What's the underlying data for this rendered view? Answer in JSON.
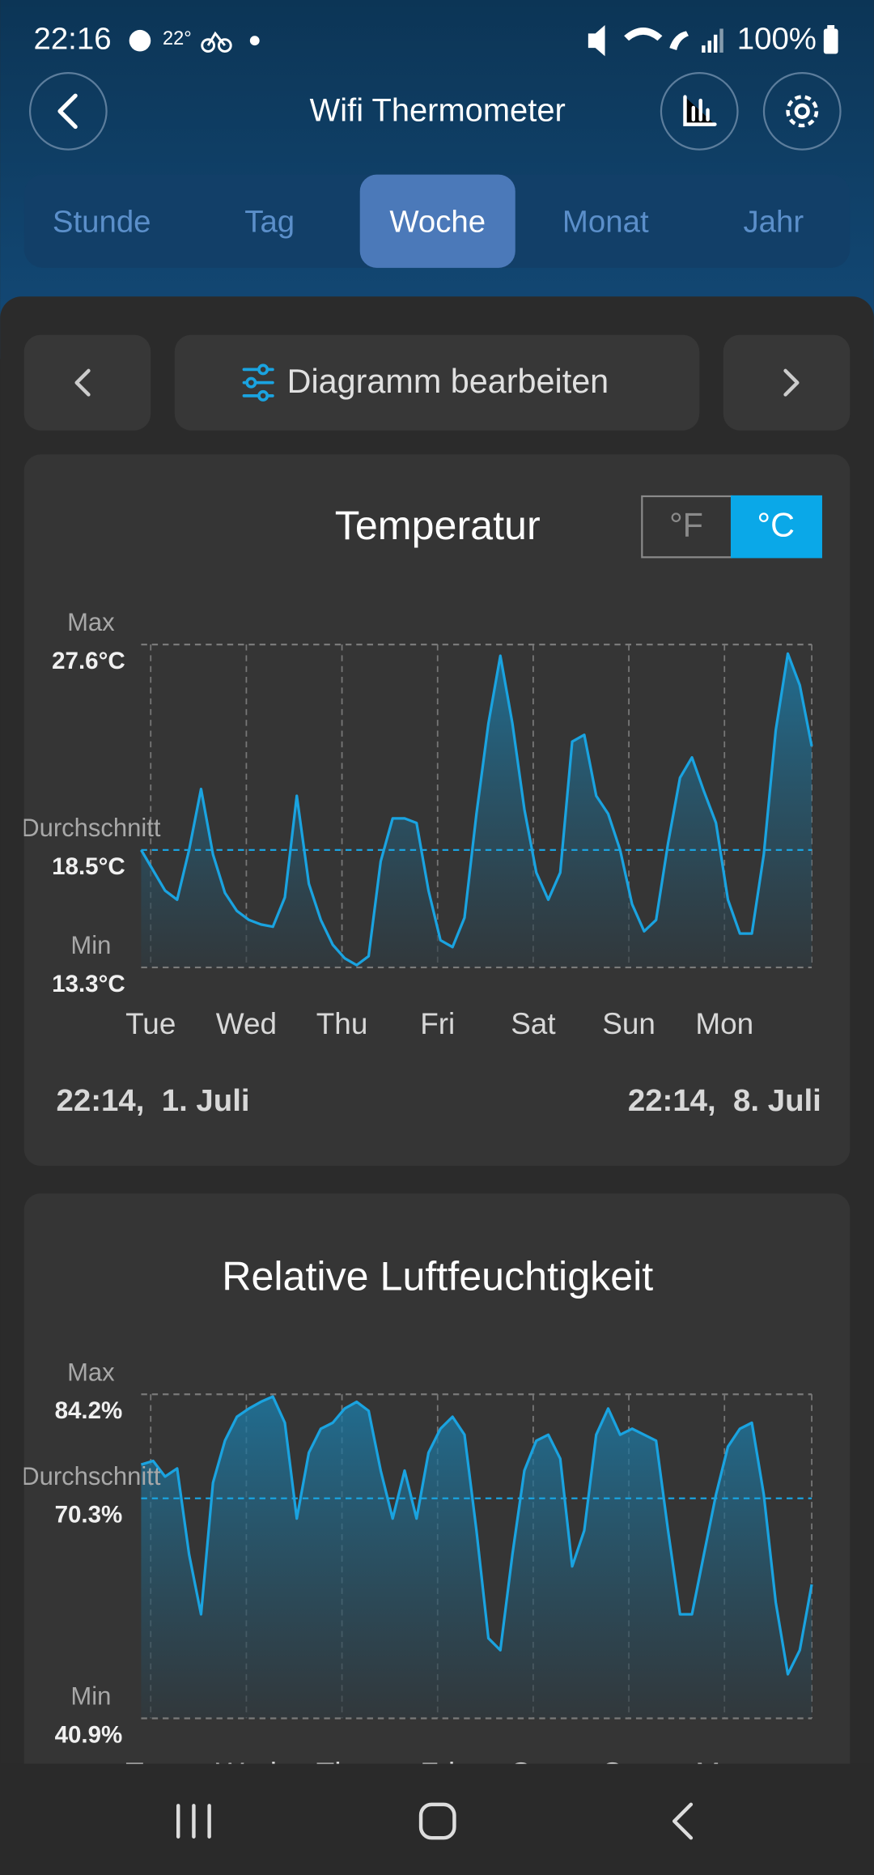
{
  "status_bar": {
    "time": "22:16",
    "temperature": "22°",
    "battery": "100%"
  },
  "header": {
    "title": "Wifi Thermometer"
  },
  "tabs": {
    "items": [
      "Stunde",
      "Tag",
      "Woche",
      "Monat",
      "Jahr"
    ],
    "active": 2
  },
  "toolbar": {
    "edit_label": "Diagramm bearbeiten"
  },
  "charts": [
    {
      "type": "area",
      "title": "Temperatur",
      "unit_toggle": {
        "items": [
          "°F",
          "°C"
        ],
        "active": 1
      },
      "categories": [
        "Tue",
        "Wed",
        "Thu",
        "Fri",
        "Sat",
        "Sun",
        "Mon"
      ],
      "ylim": [
        13.3,
        27.6
      ],
      "reference_lines": [
        {
          "name": "Max",
          "value": 27.6,
          "label": "27.6°C",
          "color": "#7a7a7a"
        },
        {
          "name": "Durchschnitt",
          "value": 18.5,
          "label": "18.5°C",
          "color": "#1aa3e0"
        },
        {
          "name": "Min",
          "value": 13.3,
          "label": "13.3°C",
          "color": "#7a7a7a"
        }
      ],
      "series": [
        {
          "color": "#1aa3e0",
          "values": [
            18.5,
            17.6,
            16.7,
            16.3,
            18.5,
            21.2,
            18.3,
            16.6,
            15.8,
            15.4,
            15.2,
            15.1,
            16.4,
            20.9,
            17.0,
            15.4,
            14.3,
            13.7,
            13.4,
            13.8,
            18.0,
            19.9,
            19.9,
            19.7,
            16.7,
            14.5,
            14.2,
            15.5,
            20.1,
            24.1,
            27.1,
            24.1,
            20.3,
            17.5,
            16.3,
            17.5,
            23.3,
            23.6,
            20.9,
            20.1,
            18.5,
            16.1,
            14.9,
            15.4,
            18.8,
            21.7,
            22.6,
            21.1,
            19.7,
            16.3,
            14.8,
            14.8,
            18.3,
            23.8,
            27.2,
            25.8,
            23.1
          ]
        }
      ],
      "range_start": "22:14,  1. Juli",
      "range_end": "22:14,  8. Juli"
    },
    {
      "type": "area",
      "title": "Relative Luftfeuchtigkeit",
      "categories": [
        "Tue",
        "Wed",
        "Thu",
        "Fri",
        "Sat",
        "Sun",
        "Mon"
      ],
      "ylim": [
        40.9,
        84.2
      ],
      "reference_lines": [
        {
          "name": "Max",
          "value": 84.2,
          "label": "84.2%",
          "color": "#7a7a7a"
        },
        {
          "name": "Durchschnitt",
          "value": 70.3,
          "label": "70.3%",
          "color": "#1aa3e0"
        },
        {
          "name": "Min",
          "value": 40.9,
          "label": "40.9%",
          "color": "#7a7a7a"
        }
      ],
      "series": [
        {
          "color": "#1aa3e0",
          "values": [
            74.8,
            75.3,
            73.2,
            74.3,
            62.8,
            54.8,
            72.4,
            78.0,
            81.2,
            82.3,
            83.2,
            83.9,
            80.4,
            67.6,
            76.4,
            79.6,
            80.4,
            82.3,
            83.2,
            82.0,
            74.0,
            67.6,
            74.0,
            67.6,
            76.4,
            79.6,
            81.2,
            78.8,
            66.0,
            51.6,
            50.0,
            62.8,
            74.0,
            78.0,
            78.8,
            75.6,
            61.2,
            66.0,
            78.8,
            82.3,
            78.8,
            79.6,
            78.8,
            78.0,
            66.0,
            54.8,
            54.8,
            62.8,
            70.8,
            77.2,
            79.6,
            80.4,
            70.8,
            56.4,
            46.8,
            50.0,
            58.8
          ]
        }
      ]
    }
  ]
}
